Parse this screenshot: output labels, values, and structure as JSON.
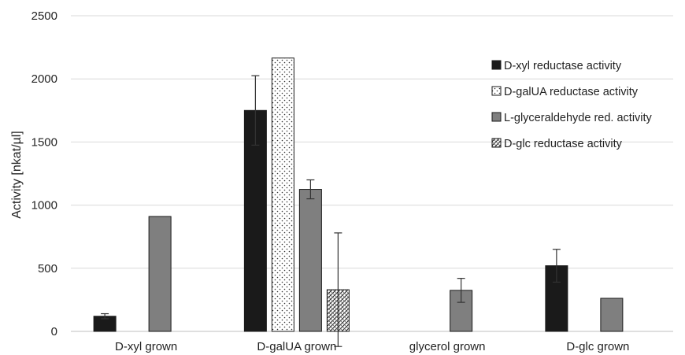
{
  "chart_data": {
    "type": "bar",
    "title": "",
    "xlabel": "",
    "ylabel": "Activity [nkat/µl]",
    "ylim": [
      0,
      2500
    ],
    "yticks": [
      0,
      500,
      1000,
      1500,
      2000,
      2500
    ],
    "grid": true,
    "legend_position": "top-right",
    "categories": [
      "D-xyl grown",
      "D-galUA grown",
      "glycerol grown",
      "D-glc grown"
    ],
    "series": [
      {
        "name": "D-xyl reductase activity",
        "color": "#1a1a1a",
        "pattern": "solid",
        "values": [
          120,
          1750,
          null,
          520
        ],
        "errors": [
          20,
          275,
          null,
          130
        ]
      },
      {
        "name": "D-galUA reductase activity",
        "color": "#ffffff",
        "pattern": "dots",
        "values": [
          null,
          2165,
          null,
          null
        ],
        "errors": [
          null,
          null,
          null,
          null
        ]
      },
      {
        "name": "L-glyceraldehyde red. activity",
        "color": "#7f7f7f",
        "pattern": "solid",
        "values": [
          910,
          1125,
          325,
          262
        ],
        "errors": [
          null,
          75,
          95,
          null
        ]
      },
      {
        "name": "D-glc reductase activity",
        "color": "#ffffff",
        "pattern": "hatch",
        "values": [
          null,
          330,
          null,
          null
        ],
        "errors": [
          null,
          450,
          null,
          null
        ]
      }
    ]
  }
}
